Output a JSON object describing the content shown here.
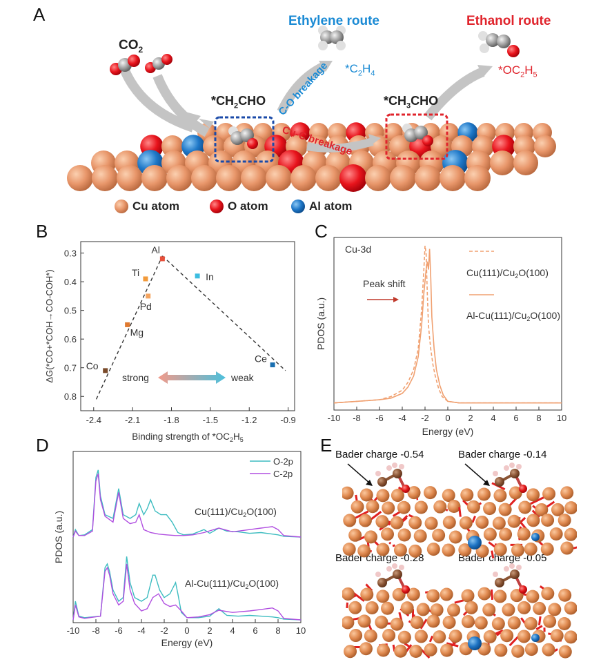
{
  "panels": {
    "a": {
      "letter": "A",
      "co2": "CO",
      "co2_sub": "2",
      "ethylene_route": "Ethylene route",
      "ethanol_route": "Ethanol route",
      "co_breakage": "C-O breakage",
      "cuc_breakage": "Cu-C breakage",
      "c2h4": {
        "pre": "*C",
        "s1": "2",
        "mid": "H",
        "s2": "4"
      },
      "oc2h5": {
        "pre": "*OC",
        "s1": "2",
        "mid": "H",
        "s2": "5"
      },
      "ch2cho": {
        "pre": "*CH",
        "s1": "2",
        "post": "CHO"
      },
      "ch3cho": {
        "pre": "*CH",
        "s1": "3",
        "post": "CHO"
      },
      "legend": [
        "Cu atom",
        "O atom",
        "Al atom"
      ],
      "colors": {
        "cu": "#e89a68",
        "o": "#e8141c",
        "al": "#1f78c8",
        "blue": "#1a8ad4",
        "red": "#e0242c"
      }
    },
    "b": {
      "letter": "B",
      "xlabel_pre": "Binding strength of *OC",
      "xlabel_s1": "2",
      "xlabel_mid": "H",
      "xlabel_s2": "5",
      "ylabel": "ΔG(*CO+*COH→CO-COH*)",
      "strong": "strong",
      "weak": "weak",
      "xticks": [
        "-2.4",
        "-2.1",
        "-1.8",
        "-1.5",
        "-1.2",
        "-0.9"
      ],
      "yticks": [
        "0.3",
        "0.4",
        "0.5",
        "0.6",
        "0.7",
        "0.8"
      ]
    },
    "c": {
      "letter": "C",
      "title": "Cu-3d",
      "peak_shift": "Peak shift",
      "legend1": {
        "pre": "Cu(111)/Cu",
        "sub": "2",
        "post": "O(100)"
      },
      "legend2": {
        "pre": "Al-Cu(111)/Cu",
        "sub": "2",
        "post": "O(100)"
      },
      "xlabel": "Energy (eV)",
      "ylabel": "PDOS (a.u.)",
      "xticks": [
        "-10",
        "-8",
        "-6",
        "-4",
        "-2",
        "0",
        "2",
        "4",
        "6",
        "8",
        "10"
      ]
    },
    "d": {
      "letter": "D",
      "legend": [
        "O-2p",
        "C-2p"
      ],
      "label1": {
        "pre": "Cu(111)/Cu",
        "sub": "2",
        "post": "O(100)"
      },
      "label2": {
        "pre": "Al-Cu(111)/Cu",
        "sub": "2",
        "post": "O(100)"
      },
      "xlabel": "Energy (eV)",
      "ylabel": "PDOS (a.u.)",
      "xticks": [
        "-10",
        "-8",
        "-6",
        "-4",
        "-2",
        "0",
        "2",
        "4",
        "6",
        "8",
        "10"
      ]
    },
    "e": {
      "letter": "E",
      "labels": [
        "Bader charge -0.54",
        "Bader charge -0.14",
        "Bader charge -0.28",
        "Bader charge -0.05"
      ]
    }
  },
  "chart_data": [
    {
      "type": "scatter",
      "xlim": [
        -2.5,
        -0.85
      ],
      "ylim": [
        0.85,
        0.26
      ],
      "points": [
        {
          "label": "Al",
          "x": -1.87,
          "y": 0.32,
          "color": "#e8503a"
        },
        {
          "label": "Ti",
          "x": -2.0,
          "y": 0.39,
          "color": "#f29a3a"
        },
        {
          "label": "In",
          "x": -1.6,
          "y": 0.38,
          "color": "#3cbde0"
        },
        {
          "label": "Pd",
          "x": -1.98,
          "y": 0.45,
          "color": "#f4a460"
        },
        {
          "label": "Mg",
          "x": -2.14,
          "y": 0.55,
          "color": "#e07a30"
        },
        {
          "label": "Co",
          "x": -2.31,
          "y": 0.71,
          "color": "#7a4a2a"
        },
        {
          "label": "Ce",
          "x": -1.02,
          "y": 0.69,
          "color": "#1a6fb0"
        }
      ],
      "fit_lines": [
        [
          [
            -2.38,
            0.81
          ],
          [
            -1.87,
            0.31
          ]
        ],
        [
          [
            -1.87,
            0.31
          ],
          [
            -0.92,
            0.71
          ]
        ]
      ]
    },
    {
      "type": "line",
      "xlim": [
        -10,
        10
      ],
      "series": [
        {
          "name": "Cu(111)/Cu2O(100)",
          "dash": true,
          "color": "#f0a070",
          "x": [
            -10,
            -8,
            -6,
            -5,
            -4,
            -3.5,
            -3,
            -2.6,
            -2.3,
            -2.1,
            -2.0,
            -1.9,
            -1.8,
            -1.7,
            -1.6,
            -1.5,
            -1.3,
            -1.1,
            -0.8,
            -0.5,
            0,
            1,
            2,
            4,
            6,
            8,
            10
          ],
          "y": [
            0.01,
            0.02,
            0.03,
            0.05,
            0.09,
            0.14,
            0.22,
            0.35,
            0.6,
            0.85,
            1.0,
            0.95,
            0.7,
            0.5,
            0.42,
            0.35,
            0.25,
            0.18,
            0.1,
            0.05,
            0.02,
            0.01,
            0.01,
            0.01,
            0.01,
            0.01,
            0.01
          ]
        },
        {
          "name": "Al-Cu(111)/Cu2O(100)",
          "dash": false,
          "color": "#f0a070",
          "x": [
            -10,
            -8,
            -6,
            -5,
            -4,
            -3.5,
            -3,
            -2.6,
            -2.3,
            -2.1,
            -1.9,
            -1.8,
            -1.7,
            -1.6,
            -1.5,
            -1.4,
            -1.2,
            -1.0,
            -0.7,
            -0.4,
            0,
            1,
            2,
            4,
            6,
            8,
            10
          ],
          "y": [
            0.01,
            0.02,
            0.03,
            0.04,
            0.07,
            0.11,
            0.18,
            0.3,
            0.5,
            0.7,
            0.85,
            0.9,
            0.85,
            0.98,
            0.8,
            0.55,
            0.35,
            0.22,
            0.12,
            0.06,
            0.02,
            0.01,
            0.01,
            0.01,
            0.01,
            0.01,
            0.01
          ]
        }
      ]
    },
    {
      "type": "line",
      "xlim": [
        -10,
        10
      ],
      "series": [
        {
          "name": "O-2p",
          "color": "#3cbcc0",
          "group": "top",
          "x": [
            -10,
            -9.8,
            -9.5,
            -9,
            -8.3,
            -8.0,
            -7.8,
            -7.6,
            -7.2,
            -6.5,
            -6.0,
            -5.6,
            -5.0,
            -4.5,
            -4.2,
            -3.8,
            -3.5,
            -3.2,
            -2.8,
            -2.3,
            -1.8,
            -1.3,
            -0.8,
            -0.3,
            0.5,
            1.5,
            2.0,
            2.8,
            3.5,
            4.5,
            5.5,
            6.5,
            7.5,
            8.0,
            8.5,
            10
          ],
          "y": [
            0.0,
            0.1,
            0.02,
            0.03,
            0.1,
            0.8,
            0.9,
            0.55,
            0.3,
            0.25,
            0.65,
            0.3,
            0.25,
            0.3,
            0.45,
            0.3,
            0.38,
            0.5,
            0.35,
            0.3,
            0.3,
            0.2,
            0.06,
            0.03,
            0.04,
            0.1,
            0.05,
            0.12,
            0.08,
            0.07,
            0.05,
            0.06,
            0.04,
            0.03,
            0.01,
            0.0
          ]
        },
        {
          "name": "C-2p",
          "color": "#b04ee0",
          "group": "top",
          "x": [
            -10,
            -9.8,
            -9.5,
            -9,
            -8.3,
            -8.0,
            -7.8,
            -7.6,
            -7.2,
            -6.5,
            -6.0,
            -5.6,
            -5.0,
            -4.5,
            -4.2,
            -3.8,
            -3.2,
            -2.5,
            -1.8,
            -1.0,
            -0.3,
            0.5,
            1.5,
            2.8,
            4.0,
            5.5,
            6.5,
            7.5,
            8.0,
            8.5,
            10
          ],
          "y": [
            0.0,
            0.08,
            0.02,
            0.02,
            0.08,
            0.75,
            0.85,
            0.5,
            0.28,
            0.2,
            0.6,
            0.25,
            0.18,
            0.2,
            0.3,
            0.1,
            0.06,
            0.04,
            0.03,
            0.02,
            0.02,
            0.03,
            0.06,
            0.12,
            0.07,
            0.1,
            0.12,
            0.14,
            0.1,
            0.02,
            0.0
          ]
        },
        {
          "name": "O-2p",
          "color": "#3cbcc0",
          "group": "bottom",
          "x": [
            -10,
            -9.8,
            -9.5,
            -9,
            -7.6,
            -7.2,
            -7.0,
            -6.8,
            -6.5,
            -6.0,
            -5.6,
            -5.3,
            -5.0,
            -4.6,
            -4.0,
            -3.5,
            -3.0,
            -2.8,
            -2.4,
            -2.0,
            -1.5,
            -1.0,
            -0.8,
            -0.5,
            0,
            1.0,
            2.0,
            2.8,
            3.5,
            4.5,
            5.5,
            6.5,
            7.5,
            8.0,
            8.5,
            10
          ],
          "y": [
            0.0,
            0.25,
            0.05,
            0.03,
            0.05,
            0.7,
            0.75,
            0.65,
            0.4,
            0.25,
            0.3,
            0.85,
            0.5,
            0.3,
            0.25,
            0.3,
            0.6,
            0.6,
            0.4,
            0.3,
            0.35,
            0.5,
            0.35,
            0.1,
            0.03,
            0.03,
            0.05,
            0.15,
            0.06,
            0.05,
            0.06,
            0.05,
            0.04,
            0.03,
            0.01,
            0.0
          ]
        },
        {
          "name": "C-2p",
          "color": "#b04ee0",
          "group": "bottom",
          "x": [
            -10,
            -9.8,
            -9.5,
            -9,
            -7.6,
            -7.2,
            -7.0,
            -6.8,
            -6.5,
            -6.0,
            -5.6,
            -5.3,
            -5.0,
            -4.6,
            -4.0,
            -3.5,
            -3.0,
            -2.5,
            -2.0,
            -1.5,
            -1.0,
            -0.5,
            0,
            1.0,
            2.0,
            2.8,
            4.0,
            5.5,
            6.5,
            7.5,
            8.0,
            8.5,
            10
          ],
          "y": [
            0.0,
            0.2,
            0.04,
            0.02,
            0.05,
            0.65,
            0.7,
            0.6,
            0.35,
            0.2,
            0.25,
            0.75,
            0.4,
            0.22,
            0.12,
            0.15,
            0.3,
            0.35,
            0.22,
            0.18,
            0.2,
            0.12,
            0.03,
            0.04,
            0.07,
            0.13,
            0.1,
            0.12,
            0.14,
            0.16,
            0.12,
            0.02,
            0.0
          ]
        }
      ]
    }
  ]
}
